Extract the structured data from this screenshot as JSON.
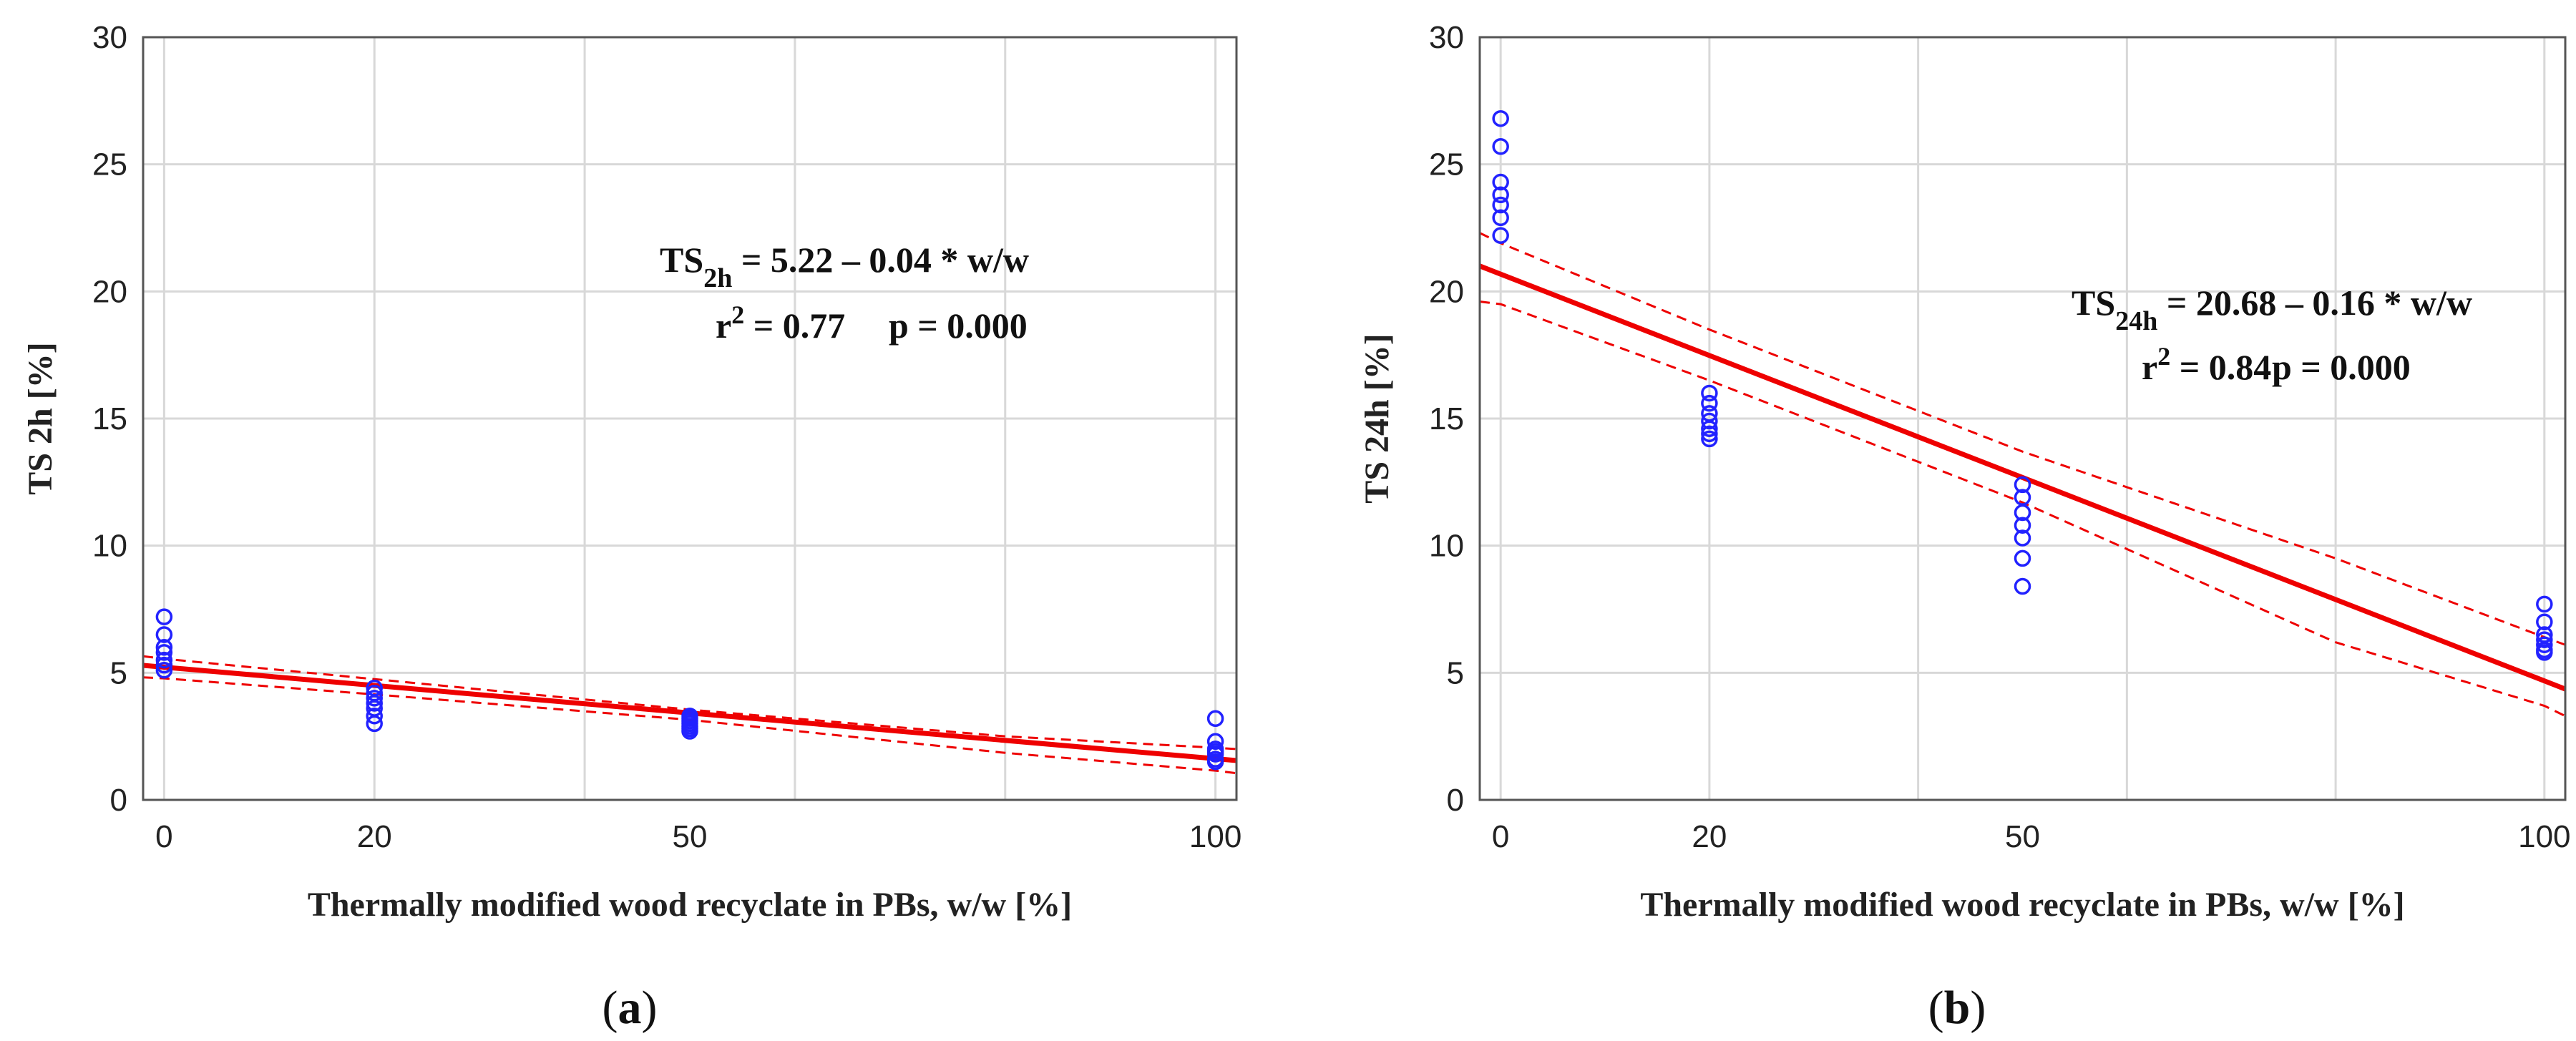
{
  "colors": {
    "points": "#2222ff",
    "fit": "#ee0000",
    "ci": "#ee0000",
    "grid": "#d8d8d8",
    "frame": "#555555"
  },
  "chart_data": [
    {
      "type": "scatter",
      "panel_label": "(a)",
      "panel_letter": "a",
      "xlabel": "Thermally modified wood recyclate in PBs, w/w  [%]",
      "ylabel": "TS  2h [%]",
      "xlim": [
        -2,
        102
      ],
      "ylim": [
        0,
        30
      ],
      "xticks": [
        0,
        20,
        50,
        100
      ],
      "xtick_labels": [
        "0",
        "20",
        "50",
        "100"
      ],
      "yticks": [
        0,
        5,
        10,
        15,
        20,
        25,
        30
      ],
      "ytick_labels": [
        "0",
        "5",
        "10",
        "15",
        "20",
        "25",
        "30"
      ],
      "x_grid": [
        0,
        20,
        40,
        60,
        80,
        100
      ],
      "grid": true,
      "equation": {
        "lhs_main": "TS",
        "lhs_sub": "2h",
        "rhs": " = 5.22 – 0.04 * w/w",
        "r_label": "r",
        "r_sup": "2",
        "r_value": " = 0.77",
        "p_text": "p = 0.000"
      },
      "fit": {
        "intercept": 5.22,
        "slope": -0.036,
        "x0": -2,
        "x1": 102
      },
      "ci_upper": [
        [
          -2,
          5.65
        ],
        [
          0,
          5.55
        ],
        [
          20,
          4.75
        ],
        [
          50,
          3.55
        ],
        [
          80,
          2.5
        ],
        [
          100,
          2.05
        ],
        [
          102,
          2.0
        ]
      ],
      "ci_lower": [
        [
          -2,
          4.82
        ],
        [
          0,
          4.78
        ],
        [
          20,
          4.15
        ],
        [
          50,
          3.15
        ],
        [
          80,
          1.85
        ],
        [
          100,
          1.15
        ],
        [
          102,
          1.05
        ]
      ],
      "points": [
        [
          0,
          7.2
        ],
        [
          0,
          6.5
        ],
        [
          0,
          6.0
        ],
        [
          0,
          5.8
        ],
        [
          0,
          5.5
        ],
        [
          0,
          5.3
        ],
        [
          0,
          5.1
        ],
        [
          20,
          4.4
        ],
        [
          20,
          4.2
        ],
        [
          20,
          4.0
        ],
        [
          20,
          3.8
        ],
        [
          20,
          3.6
        ],
        [
          20,
          3.3
        ],
        [
          20,
          3.0
        ],
        [
          50,
          3.3
        ],
        [
          50,
          3.2
        ],
        [
          50,
          3.1
        ],
        [
          50,
          3.0
        ],
        [
          50,
          2.9
        ],
        [
          50,
          2.8
        ],
        [
          50,
          2.7
        ],
        [
          100,
          3.2
        ],
        [
          100,
          2.3
        ],
        [
          100,
          2.0
        ],
        [
          100,
          1.9
        ],
        [
          100,
          1.8
        ],
        [
          100,
          1.6
        ],
        [
          100,
          1.5
        ]
      ]
    },
    {
      "type": "scatter",
      "panel_label": "(b)",
      "panel_letter": "b",
      "xlabel": "Thermally modified wood recyclate in PBs, w/w  [%]",
      "ylabel": "TS  24h [%]",
      "xlim": [
        -2,
        102
      ],
      "ylim": [
        0,
        30
      ],
      "xticks": [
        0,
        20,
        50,
        100
      ],
      "xtick_labels": [
        "0",
        "20",
        "50",
        "100"
      ],
      "yticks": [
        0,
        5,
        10,
        15,
        20,
        25,
        30
      ],
      "ytick_labels": [
        "0",
        "5",
        "10",
        "15",
        "20",
        "25",
        "30"
      ],
      "x_grid": [
        0,
        20,
        40,
        60,
        80,
        100
      ],
      "grid": true,
      "equation": {
        "lhs_main": "TS",
        "lhs_sub": "24h",
        "rhs": " = 20.68 – 0.16 * w/w",
        "r_label": "r",
        "r_sup": "2",
        "r_value": " = 0.84",
        "p_text": "p = 0.000"
      },
      "fit": {
        "intercept": 20.68,
        "slope": -0.16,
        "x0": -2,
        "x1": 102
      },
      "ci_upper": [
        [
          -2,
          22.3
        ],
        [
          0,
          21.9
        ],
        [
          20,
          18.5
        ],
        [
          50,
          13.7
        ],
        [
          80,
          9.5
        ],
        [
          100,
          6.4
        ],
        [
          102,
          6.1
        ]
      ],
      "ci_lower": [
        [
          -2,
          19.6
        ],
        [
          0,
          19.5
        ],
        [
          20,
          16.5
        ],
        [
          50,
          11.7
        ],
        [
          80,
          6.2
        ],
        [
          100,
          3.7
        ],
        [
          102,
          3.3
        ]
      ],
      "points": [
        [
          0,
          26.8
        ],
        [
          0,
          25.7
        ],
        [
          0,
          24.3
        ],
        [
          0,
          23.8
        ],
        [
          0,
          23.4
        ],
        [
          0,
          22.9
        ],
        [
          0,
          22.2
        ],
        [
          20,
          16.0
        ],
        [
          20,
          15.6
        ],
        [
          20,
          15.2
        ],
        [
          20,
          14.9
        ],
        [
          20,
          14.6
        ],
        [
          20,
          14.4
        ],
        [
          20,
          14.2
        ],
        [
          50,
          12.4
        ],
        [
          50,
          11.9
        ],
        [
          50,
          11.3
        ],
        [
          50,
          10.8
        ],
        [
          50,
          10.3
        ],
        [
          50,
          9.5
        ],
        [
          50,
          8.4
        ],
        [
          100,
          7.7
        ],
        [
          100,
          7.0
        ],
        [
          100,
          6.5
        ],
        [
          100,
          6.3
        ],
        [
          100,
          6.1
        ],
        [
          100,
          5.9
        ],
        [
          100,
          5.8
        ]
      ]
    }
  ]
}
